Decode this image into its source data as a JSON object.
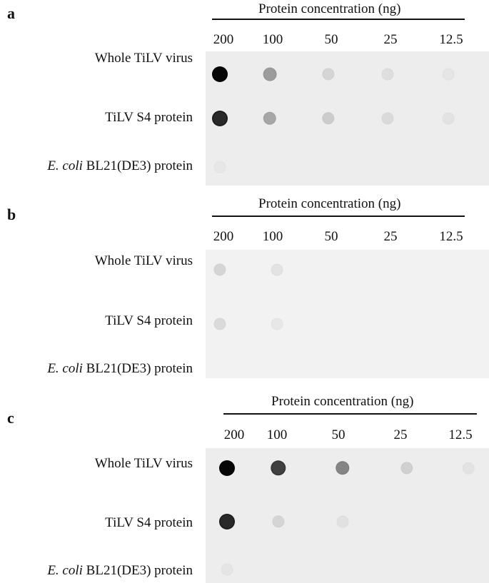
{
  "panels": [
    {
      "letter": "a",
      "concentration_title": "Protein concentration (ng)",
      "concentrations": [
        "200",
        "100",
        "50",
        "25",
        "12.5"
      ],
      "rows": [
        {
          "label_italic": "",
          "label": "Whole TiLV virus",
          "signal": [
            1.0,
            0.35,
            0.1,
            0.06,
            0.03
          ]
        },
        {
          "label_italic": "",
          "label": "TiLV S4 protein",
          "signal": [
            0.85,
            0.3,
            0.14,
            0.08,
            0.04
          ]
        },
        {
          "label_italic": "E. coli",
          "label": " BL21(DE3) protein",
          "signal": [
            0.02,
            0.0,
            0.0,
            0.0,
            0.0
          ]
        }
      ]
    },
    {
      "letter": "b",
      "concentration_title": "Protein concentration (ng)",
      "concentrations": [
        "200",
        "100",
        "50",
        "25",
        "12.5"
      ],
      "rows": [
        {
          "label_italic": "",
          "label": "Whole TiLV virus",
          "signal": [
            0.1,
            0.04,
            0.0,
            0.0,
            0.0
          ]
        },
        {
          "label_italic": "",
          "label": "TiLV S4 protein",
          "signal": [
            0.08,
            0.02,
            0.0,
            0.0,
            0.0
          ]
        },
        {
          "label_italic": "E. coli",
          "label": " BL21(DE3) protein",
          "signal": [
            0.0,
            0.0,
            0.0,
            0.0,
            0.0
          ]
        }
      ]
    },
    {
      "letter": "c",
      "concentration_title": "Protein concentration (ng)",
      "concentrations": [
        "200",
        "100",
        "50",
        "25",
        "12.5"
      ],
      "rows": [
        {
          "label_italic": "",
          "label": "Whole TiLV virus",
          "signal": [
            1.0,
            0.75,
            0.45,
            0.12,
            0.04
          ]
        },
        {
          "label_italic": "",
          "label": "TiLV S4 protein",
          "signal": [
            0.85,
            0.1,
            0.05,
            0.0,
            0.0
          ]
        },
        {
          "label_italic": "E. coli",
          "label": " BL21(DE3) protein",
          "signal": [
            0.03,
            0.0,
            0.0,
            0.0,
            0.0
          ]
        }
      ]
    }
  ]
}
